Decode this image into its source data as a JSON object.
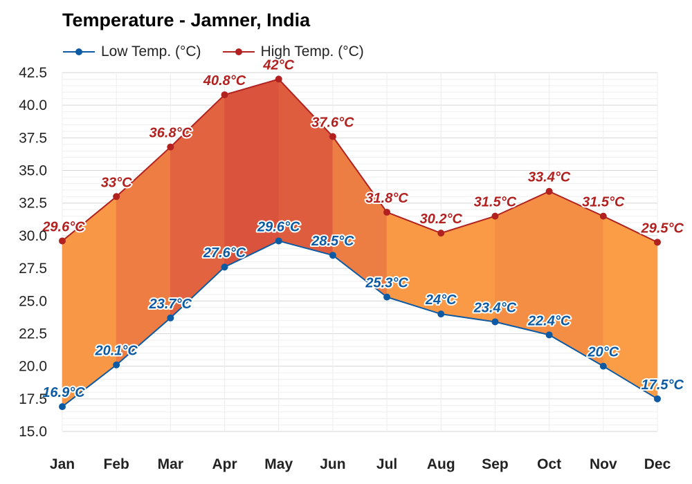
{
  "chart_data": {
    "type": "line",
    "title": "Temperature - Jamner, India",
    "categories": [
      "Jan",
      "Feb",
      "Mar",
      "Apr",
      "May",
      "Jun",
      "Jul",
      "Aug",
      "Sep",
      "Oct",
      "Nov",
      "Dec"
    ],
    "series": [
      {
        "name": "Low Temp. (°C)",
        "values": [
          16.9,
          20.1,
          23.7,
          27.6,
          29.6,
          28.5,
          25.3,
          24,
          23.4,
          22.4,
          20,
          17.5
        ],
        "labels": [
          "16.9°C",
          "20.1°C",
          "23.7°C",
          "27.6°C",
          "29.6°C",
          "28.5°C",
          "25.3°C",
          "24°C",
          "23.4°C",
          "22.4°C",
          "20°C",
          "17.5°C"
        ],
        "color": "#0b5aa3"
      },
      {
        "name": "High Temp. (°C)",
        "values": [
          29.6,
          33,
          36.8,
          40.8,
          42,
          37.6,
          31.8,
          30.2,
          31.5,
          33.4,
          31.5,
          29.5
        ],
        "labels": [
          "29.6°C",
          "33°C",
          "36.8°C",
          "40.8°C",
          "42°C",
          "37.6°C",
          "31.8°C",
          "30.2°C",
          "31.5°C",
          "33.4°C",
          "31.5°C",
          "29.5°C"
        ],
        "color": "#b0211f"
      }
    ],
    "ylim": [
      15,
      42.5
    ],
    "yticks": [
      15.0,
      17.5,
      20.0,
      22.5,
      25.0,
      27.5,
      30.0,
      32.5,
      35.0,
      37.5,
      40.0,
      42.5
    ],
    "ytick_labels": [
      "15.0",
      "17.5",
      "20.0",
      "22.5",
      "25.0",
      "27.5",
      "30.0",
      "32.5",
      "35.0",
      "37.5",
      "40.0",
      "42.5"
    ],
    "xlabel": "",
    "ylabel": "",
    "grid": true,
    "legend": "top-left",
    "fill_between": true,
    "fill_colors": {
      "cool": "#ff9f43",
      "hot": "#d9503a"
    }
  }
}
